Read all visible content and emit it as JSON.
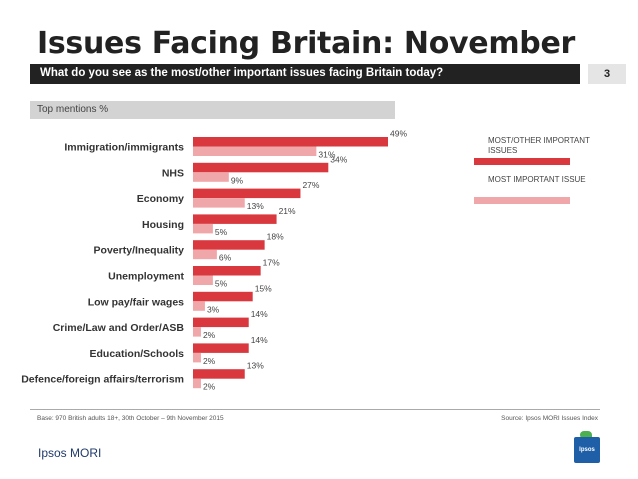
{
  "page": {
    "title": "Issues Facing Britain: November",
    "question": "What do you see as the most/other important issues facing Britain today?",
    "page_number": "3",
    "subheader": "Top mentions %",
    "base_note": "Base: 970 British adults 18+, 30th October – 9th November 2015",
    "source_note": "Source: Ipsos MORI Issues Index",
    "brand": "Ipsos MORI",
    "logo_text": "Ipsos"
  },
  "colors": {
    "most_other": "#d9383e",
    "most_important": "#f0a7aa"
  },
  "chart_data": {
    "type": "bar",
    "orientation": "horizontal",
    "title": "",
    "categories": [
      "Immigration/immigrants",
      "NHS",
      "Economy",
      "Housing",
      "Poverty/Inequality",
      "Unemployment",
      "Low pay/fair wages",
      "Crime/Law and Order/ASB",
      "Education/Schools",
      "Defence/foreign affairs/terrorism"
    ],
    "series": [
      {
        "name": "MOST/OTHER IMPORTANT ISSUES",
        "values": [
          49,
          34,
          27,
          21,
          18,
          17,
          15,
          14,
          14,
          13
        ]
      },
      {
        "name": "MOST IMPORTANT ISSUE",
        "values": [
          31,
          9,
          13,
          5,
          6,
          5,
          3,
          2,
          2,
          2
        ]
      }
    ],
    "value_suffix": "%",
    "xlim": [
      0,
      49
    ],
    "grid": false,
    "legend": "right"
  }
}
